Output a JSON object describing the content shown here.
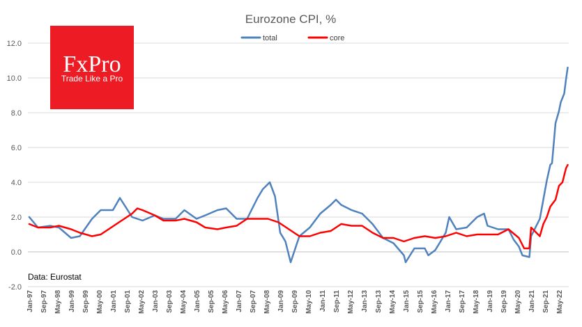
{
  "logo": {
    "name": "FxPro",
    "tagline": "Trade Like a Pro",
    "color": "#ED1C24"
  },
  "source_note": "Data: Eurostat",
  "chart_data": {
    "type": "line",
    "title": "Eurozone CPI, %",
    "xlabel": "",
    "ylabel": "",
    "ylim": [
      -2.0,
      12.0
    ],
    "y_ticks": [
      "-2.0",
      "0.0",
      "2.0",
      "4.0",
      "6.0",
      "8.0",
      "10.0",
      "12.0"
    ],
    "grid": "horizontal",
    "legend_position": "top-center",
    "x_ticks": [
      "Jan-97",
      "Sep-97",
      "May-98",
      "Jan-99",
      "Sep-99",
      "May-00",
      "Jan-01",
      "Sep-01",
      "May-02",
      "Jan-03",
      "Sep-03",
      "May-04",
      "Jan-05",
      "Sep-05",
      "May-06",
      "Jan-07",
      "Sep-07",
      "May-08",
      "Jan-09",
      "Sep-09",
      "May-10",
      "Jan-11",
      "Sep-11",
      "May-12",
      "Jan-13",
      "Sep-13",
      "May-14",
      "Jan-15",
      "Sep-15",
      "May-16",
      "Jan-17",
      "Sep-17",
      "May-18",
      "Jan-19",
      "Sep-19",
      "May-20",
      "Jan-21",
      "Sep-21",
      "May-22"
    ],
    "x_start": "1997-01",
    "series": [
      {
        "name": "total",
        "color": "#4F81BD",
        "points": [
          [
            "1997-01",
            2.0
          ],
          [
            "1997-06",
            1.4
          ],
          [
            "1998-01",
            1.5
          ],
          [
            "1998-06",
            1.4
          ],
          [
            "1999-01",
            0.8
          ],
          [
            "1999-06",
            0.9
          ],
          [
            "2000-01",
            1.9
          ],
          [
            "2000-06",
            2.4
          ],
          [
            "2001-01",
            2.4
          ],
          [
            "2001-05",
            3.1
          ],
          [
            "2001-12",
            2.0
          ],
          [
            "2002-06",
            1.8
          ],
          [
            "2003-01",
            2.1
          ],
          [
            "2003-06",
            1.9
          ],
          [
            "2004-01",
            1.9
          ],
          [
            "2004-06",
            2.4
          ],
          [
            "2005-01",
            1.9
          ],
          [
            "2005-06",
            2.1
          ],
          [
            "2006-01",
            2.4
          ],
          [
            "2006-06",
            2.5
          ],
          [
            "2006-12",
            1.9
          ],
          [
            "2007-06",
            1.9
          ],
          [
            "2007-12",
            3.1
          ],
          [
            "2008-03",
            3.6
          ],
          [
            "2008-07",
            4.0
          ],
          [
            "2008-10",
            3.2
          ],
          [
            "2009-01",
            1.1
          ],
          [
            "2009-04",
            0.6
          ],
          [
            "2009-07",
            -0.6
          ],
          [
            "2009-12",
            0.9
          ],
          [
            "2010-06",
            1.4
          ],
          [
            "2010-12",
            2.2
          ],
          [
            "2011-06",
            2.7
          ],
          [
            "2011-09",
            3.0
          ],
          [
            "2011-12",
            2.7
          ],
          [
            "2012-06",
            2.4
          ],
          [
            "2012-12",
            2.2
          ],
          [
            "2013-06",
            1.6
          ],
          [
            "2013-12",
            0.8
          ],
          [
            "2014-06",
            0.5
          ],
          [
            "2014-12",
            -0.2
          ],
          [
            "2015-01",
            -0.6
          ],
          [
            "2015-06",
            0.2
          ],
          [
            "2015-12",
            0.2
          ],
          [
            "2016-02",
            -0.2
          ],
          [
            "2016-06",
            0.1
          ],
          [
            "2016-12",
            1.1
          ],
          [
            "2017-02",
            2.0
          ],
          [
            "2017-06",
            1.3
          ],
          [
            "2017-12",
            1.4
          ],
          [
            "2018-06",
            2.0
          ],
          [
            "2018-10",
            2.2
          ],
          [
            "2018-12",
            1.5
          ],
          [
            "2019-06",
            1.3
          ],
          [
            "2019-12",
            1.3
          ],
          [
            "2020-03",
            0.7
          ],
          [
            "2020-06",
            0.3
          ],
          [
            "2020-08",
            -0.2
          ],
          [
            "2020-12",
            -0.3
          ],
          [
            "2021-01",
            0.9
          ],
          [
            "2021-06",
            1.9
          ],
          [
            "2021-08",
            3.0
          ],
          [
            "2021-10",
            4.1
          ],
          [
            "2021-12",
            5.0
          ],
          [
            "2022-01",
            5.1
          ],
          [
            "2022-03",
            7.4
          ],
          [
            "2022-05",
            8.1
          ],
          [
            "2022-06",
            8.6
          ],
          [
            "2022-08",
            9.1
          ],
          [
            "2022-09",
            9.9
          ],
          [
            "2022-10",
            10.6
          ]
        ]
      },
      {
        "name": "core",
        "color": "#FF0000",
        "points": [
          [
            "1997-01",
            1.6
          ],
          [
            "1997-06",
            1.4
          ],
          [
            "1998-01",
            1.4
          ],
          [
            "1998-06",
            1.5
          ],
          [
            "1999-01",
            1.3
          ],
          [
            "1999-06",
            1.1
          ],
          [
            "2000-01",
            0.9
          ],
          [
            "2000-06",
            1.0
          ],
          [
            "2000-12",
            1.4
          ],
          [
            "2001-06",
            1.8
          ],
          [
            "2001-12",
            2.2
          ],
          [
            "2002-03",
            2.5
          ],
          [
            "2002-06",
            2.4
          ],
          [
            "2003-01",
            2.1
          ],
          [
            "2003-06",
            1.8
          ],
          [
            "2004-01",
            1.8
          ],
          [
            "2004-06",
            1.9
          ],
          [
            "2005-01",
            1.7
          ],
          [
            "2005-06",
            1.4
          ],
          [
            "2006-01",
            1.3
          ],
          [
            "2006-06",
            1.4
          ],
          [
            "2006-12",
            1.5
          ],
          [
            "2007-06",
            1.9
          ],
          [
            "2007-12",
            1.9
          ],
          [
            "2008-06",
            1.9
          ],
          [
            "2008-12",
            1.7
          ],
          [
            "2009-06",
            1.3
          ],
          [
            "2009-12",
            0.9
          ],
          [
            "2010-06",
            0.9
          ],
          [
            "2010-12",
            1.1
          ],
          [
            "2011-06",
            1.2
          ],
          [
            "2011-12",
            1.6
          ],
          [
            "2012-06",
            1.5
          ],
          [
            "2012-12",
            1.5
          ],
          [
            "2013-06",
            1.1
          ],
          [
            "2013-12",
            0.8
          ],
          [
            "2014-06",
            0.8
          ],
          [
            "2014-12",
            0.6
          ],
          [
            "2015-06",
            0.8
          ],
          [
            "2015-12",
            0.9
          ],
          [
            "2016-06",
            0.8
          ],
          [
            "2016-12",
            0.9
          ],
          [
            "2017-06",
            1.1
          ],
          [
            "2017-12",
            0.9
          ],
          [
            "2018-06",
            1.0
          ],
          [
            "2018-12",
            1.0
          ],
          [
            "2019-06",
            1.0
          ],
          [
            "2019-12",
            1.3
          ],
          [
            "2020-06",
            0.8
          ],
          [
            "2020-09",
            0.2
          ],
          [
            "2020-12",
            0.2
          ],
          [
            "2021-01",
            1.4
          ],
          [
            "2021-06",
            0.9
          ],
          [
            "2021-08",
            1.6
          ],
          [
            "2021-10",
            2.0
          ],
          [
            "2021-12",
            2.6
          ],
          [
            "2022-03",
            3.0
          ],
          [
            "2022-05",
            3.8
          ],
          [
            "2022-07",
            4.0
          ],
          [
            "2022-09",
            4.8
          ],
          [
            "2022-10",
            5.0
          ]
        ]
      }
    ]
  }
}
